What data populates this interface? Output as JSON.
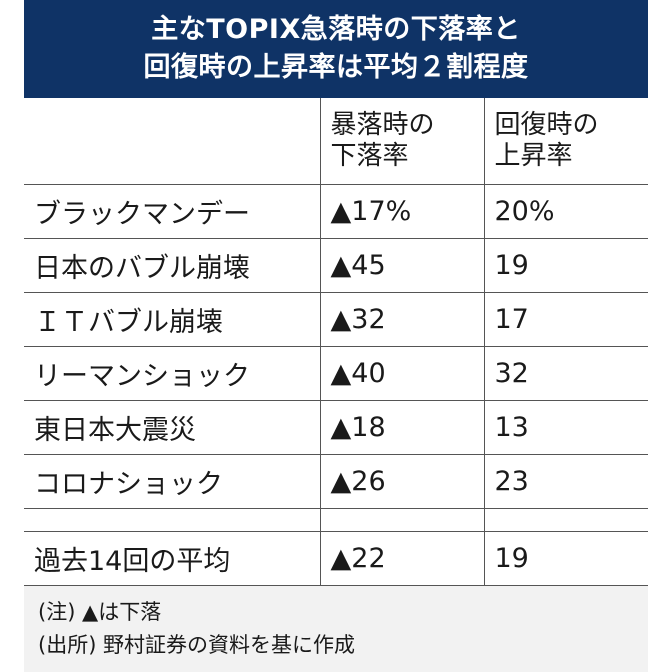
{
  "title_lines": [
    "主なTOPIX急落時の下落率と",
    "回復時の上昇率は平均２割程度"
  ],
  "chart_data": {
    "type": "table",
    "columns": [
      "",
      "暴落時の下落率",
      "回復時の上昇率"
    ],
    "header_cells": [
      "",
      "暴落時の\n下落率",
      "回復時の\n上昇率"
    ],
    "rows": [
      {
        "label": "ブラックマンデー",
        "decline": "▲17%",
        "rise": "20%"
      },
      {
        "label": "日本のバブル崩壊",
        "decline": "▲45",
        "rise": "19"
      },
      {
        "label": "ＩＴバブル崩壊",
        "decline": "▲32",
        "rise": "17"
      },
      {
        "label": "リーマンショック",
        "decline": "▲40",
        "rise": "32"
      },
      {
        "label": "東日本大震災",
        "decline": "▲18",
        "rise": "13"
      },
      {
        "label": "コロナショック",
        "decline": "▲26",
        "rise": "23"
      }
    ],
    "average": {
      "label": "過去14回の平均",
      "decline": "▲22",
      "rise": "19"
    }
  },
  "notes": {
    "note": "(注) ▲は下落",
    "source": "(出所) 野村証券の資料を基に作成"
  }
}
